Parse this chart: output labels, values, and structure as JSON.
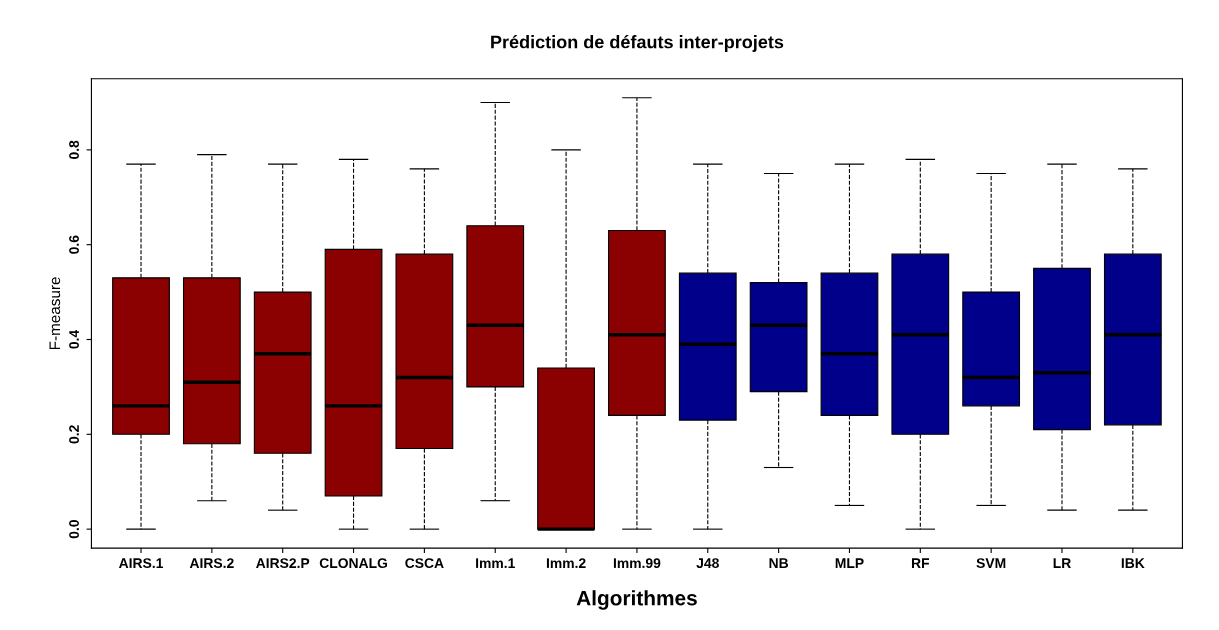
{
  "chart_data": {
    "type": "box",
    "title": "Prédiction de défauts inter-projets",
    "xlabel": "Algorithmes",
    "ylabel": "F-measure",
    "categories": [
      "AIRS.1",
      "AIRS.2",
      "AIRS2.P",
      "CLONALG",
      "CSCA",
      "Imm.1",
      "Imm.2",
      "Imm.99",
      "J48",
      "NB",
      "MLP",
      "RF",
      "SVM",
      "LR",
      "IBK"
    ],
    "colors": [
      "#8b0000",
      "#8b0000",
      "#8b0000",
      "#8b0000",
      "#8b0000",
      "#8b0000",
      "#8b0000",
      "#8b0000",
      "#00008b",
      "#00008b",
      "#00008b",
      "#00008b",
      "#00008b",
      "#00008b",
      "#00008b"
    ],
    "boxes": [
      {
        "low": 0.0,
        "q1": 0.2,
        "median": 0.26,
        "q3": 0.53,
        "high": 0.77
      },
      {
        "low": 0.06,
        "q1": 0.18,
        "median": 0.31,
        "q3": 0.53,
        "high": 0.79
      },
      {
        "low": 0.04,
        "q1": 0.16,
        "median": 0.37,
        "q3": 0.5,
        "high": 0.77
      },
      {
        "low": 0.0,
        "q1": 0.07,
        "median": 0.26,
        "q3": 0.59,
        "high": 0.78
      },
      {
        "low": 0.0,
        "q1": 0.17,
        "median": 0.32,
        "q3": 0.58,
        "high": 0.76
      },
      {
        "low": 0.06,
        "q1": 0.3,
        "median": 0.43,
        "q3": 0.64,
        "high": 0.9
      },
      {
        "low": 0.0,
        "q1": 0.0,
        "median": 0.0,
        "q3": 0.34,
        "high": 0.8
      },
      {
        "low": 0.0,
        "q1": 0.24,
        "median": 0.41,
        "q3": 0.63,
        "high": 0.91
      },
      {
        "low": 0.0,
        "q1": 0.23,
        "median": 0.39,
        "q3": 0.54,
        "high": 0.77
      },
      {
        "low": 0.13,
        "q1": 0.29,
        "median": 0.43,
        "q3": 0.52,
        "high": 0.75
      },
      {
        "low": 0.05,
        "q1": 0.24,
        "median": 0.37,
        "q3": 0.54,
        "high": 0.77
      },
      {
        "low": 0.0,
        "q1": 0.2,
        "median": 0.41,
        "q3": 0.58,
        "high": 0.78
      },
      {
        "low": 0.05,
        "q1": 0.26,
        "median": 0.32,
        "q3": 0.5,
        "high": 0.75
      },
      {
        "low": 0.04,
        "q1": 0.21,
        "median": 0.33,
        "q3": 0.55,
        "high": 0.77
      },
      {
        "low": 0.04,
        "q1": 0.22,
        "median": 0.41,
        "q3": 0.58,
        "high": 0.76
      }
    ],
    "ylim": [
      -0.04,
      0.95
    ],
    "yticks": [
      {
        "value": 0,
        "label": "0.0"
      },
      {
        "value": 0.2,
        "label": "0.2"
      },
      {
        "value": 0.4,
        "label": "0.4"
      },
      {
        "value": 0.6,
        "label": "0.6"
      },
      {
        "value": 0.8,
        "label": "0.8"
      }
    ],
    "grid": false
  }
}
